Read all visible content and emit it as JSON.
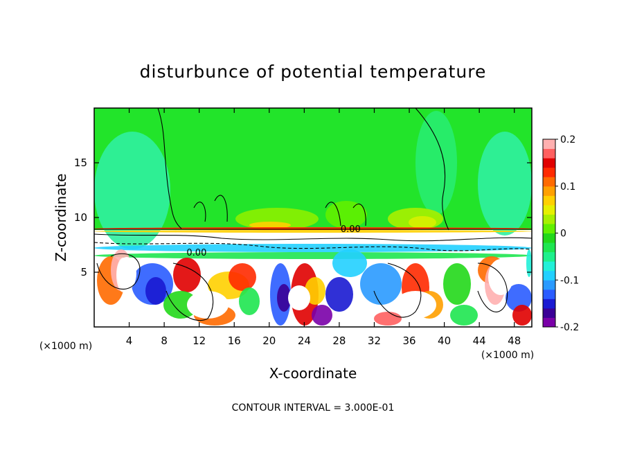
{
  "chart_data": {
    "type": "heatmap",
    "title": "disturbunce of potential temperature",
    "xlabel": "X-coordinate",
    "ylabel": "Z-coordinate",
    "x_unit_label": "(×1000 m)",
    "y_unit_label": "(×1000 m)",
    "xlim": [
      0,
      50
    ],
    "ylim": [
      0,
      20
    ],
    "x_ticks": [
      {
        "value": 4,
        "label": "4"
      },
      {
        "value": 8,
        "label": "8"
      },
      {
        "value": 12,
        "label": "12"
      },
      {
        "value": 16,
        "label": "16"
      },
      {
        "value": 20,
        "label": "20"
      },
      {
        "value": 24,
        "label": "24"
      },
      {
        "value": 28,
        "label": "28"
      },
      {
        "value": 32,
        "label": "32"
      },
      {
        "value": 36,
        "label": "36"
      },
      {
        "value": 40,
        "label": "40"
      },
      {
        "value": 44,
        "label": "44"
      },
      {
        "value": 48,
        "label": "48"
      }
    ],
    "y_ticks": [
      {
        "value": 5,
        "label": "5"
      },
      {
        "value": 10,
        "label": "10"
      },
      {
        "value": 15,
        "label": "15"
      }
    ],
    "colorbar": {
      "range": [
        -0.2,
        0.2
      ],
      "ticks": [
        {
          "value": 0.2,
          "label": "0.2"
        },
        {
          "value": 0.1,
          "label": "0.1"
        },
        {
          "value": 0,
          "label": "0"
        },
        {
          "value": -0.1,
          "label": "-0.1"
        },
        {
          "value": -0.2,
          "label": "-0.2"
        }
      ],
      "colors": [
        "#7a00a8",
        "#3a0096",
        "#1a1ad2",
        "#2a5cff",
        "#2a9aff",
        "#22d0ff",
        "#22f0d8",
        "#1ef08c",
        "#1ee650",
        "#22d81a",
        "#62f000",
        "#a8f000",
        "#e6f000",
        "#ffd000",
        "#ffa000",
        "#ff6a00",
        "#ff2a00",
        "#e00000",
        "#ff6060",
        "#ffb0b0"
      ]
    },
    "contour_interval": "CONTOUR INTERVAL = 3.000E-01",
    "contour_labels": [
      {
        "x": 29.3,
        "z": 9.0,
        "text": "0.00"
      },
      {
        "x": 11.7,
        "z": 6.85,
        "text": "0.00"
      }
    ]
  }
}
